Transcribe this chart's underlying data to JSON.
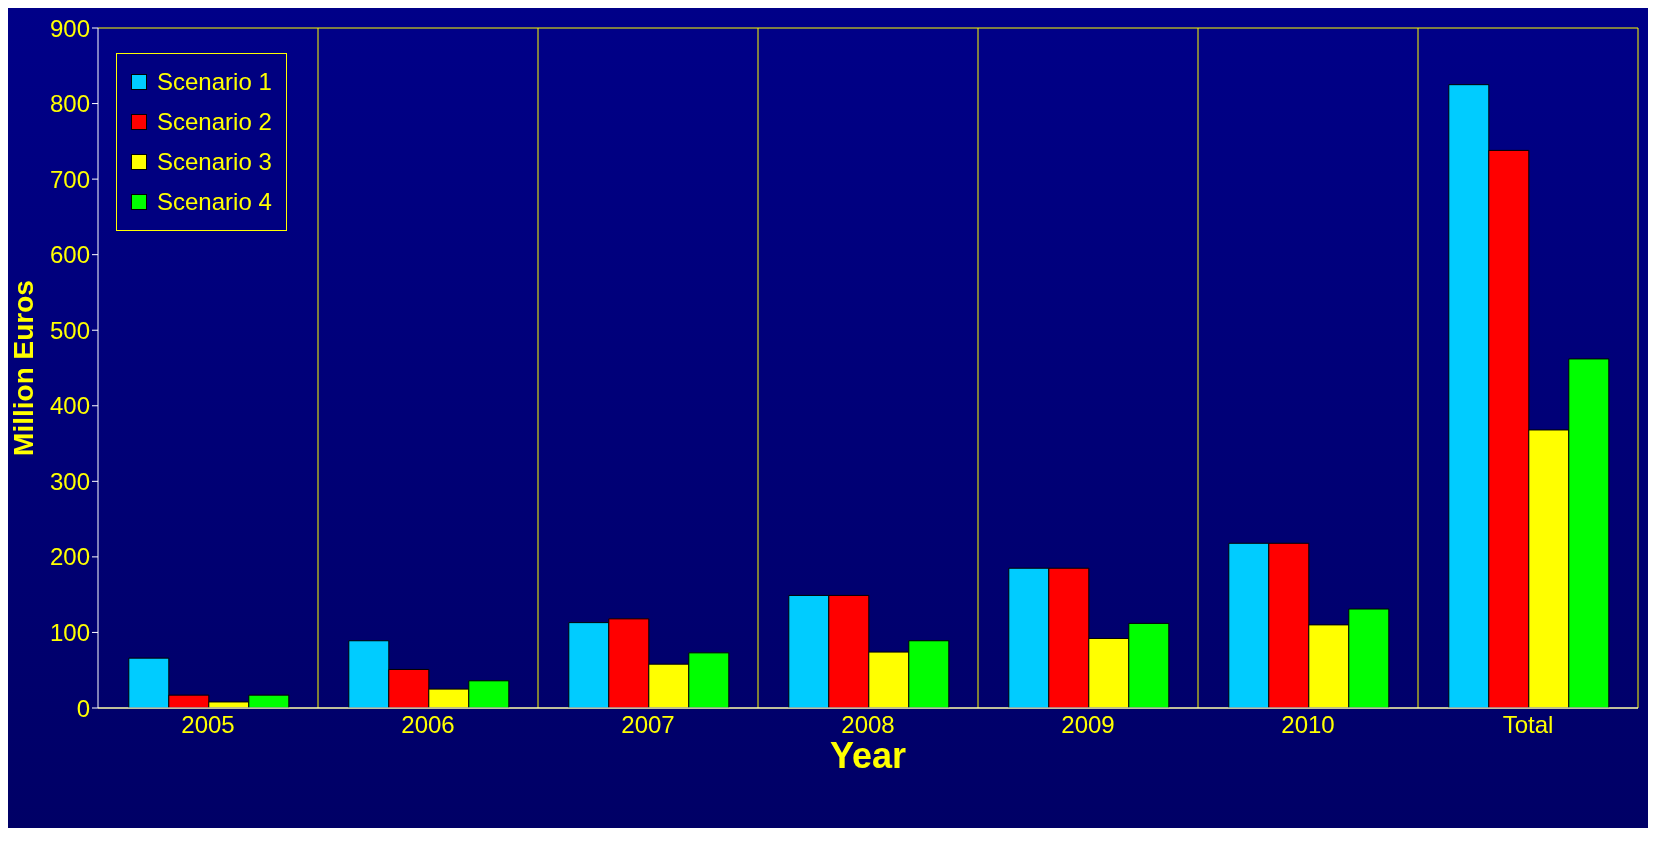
{
  "chart_data": {
    "type": "bar",
    "xlabel": "Year",
    "ylabel": "Million Euros",
    "categories": [
      "2005",
      "2006",
      "2007",
      "2008",
      "2009",
      "2010",
      "Total"
    ],
    "series": [
      {
        "name": "Scenario 1",
        "color": "#00ccff",
        "values": [
          66,
          89,
          113,
          149,
          185,
          218,
          825
        ]
      },
      {
        "name": "Scenario 2",
        "color": "#ff0000",
        "values": [
          17,
          51,
          118,
          149,
          185,
          218,
          738
        ]
      },
      {
        "name": "Scenario 3",
        "color": "#ffff00",
        "values": [
          8,
          25,
          58,
          74,
          92,
          110,
          368
        ]
      },
      {
        "name": "Scenario 4",
        "color": "#00ff00",
        "values": [
          17,
          36,
          73,
          89,
          112,
          131,
          462
        ]
      }
    ],
    "ylim": [
      0,
      900
    ],
    "yticks": [
      0,
      100,
      200,
      300,
      400,
      500,
      600,
      700,
      800,
      900
    ],
    "grid": true,
    "legend": "top left"
  }
}
